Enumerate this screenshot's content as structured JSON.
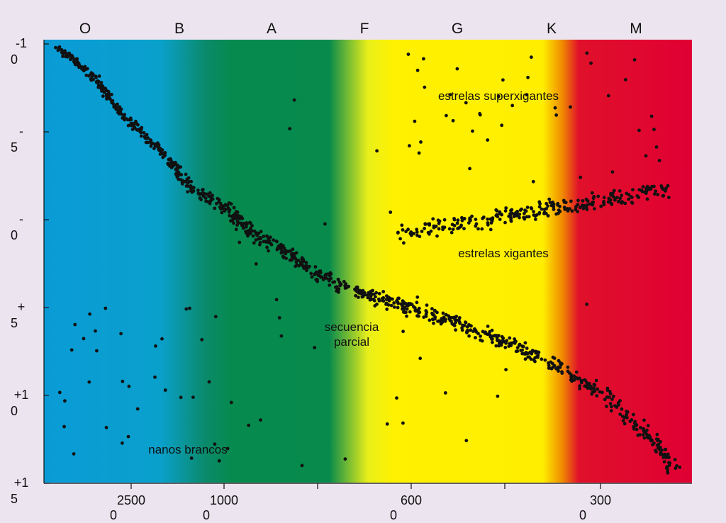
{
  "chart_data": {
    "type": "scatter",
    "title": "",
    "xlabel": "",
    "ylabel": "",
    "spectral_classes": [
      "O",
      "B",
      "A",
      "F",
      "G",
      "K",
      "M"
    ],
    "x_ticks": [
      {
        "value": 25000,
        "line1": "2500",
        "line2": "0"
      },
      {
        "value": 10000,
        "line1": "1000",
        "line2": "0"
      },
      {
        "value": 6000,
        "line1": "600",
        "line2": "0"
      },
      {
        "value": 3000,
        "line1": "300",
        "line2": "0"
      }
    ],
    "y_ticks": [
      {
        "value": -10,
        "line1": "-1",
        "line2": "0"
      },
      {
        "value": -5,
        "line1": "-",
        "line2": "5"
      },
      {
        "value": 0,
        "line1": "-",
        "line2": "0"
      },
      {
        "value": 5,
        "line1": "+",
        "line2": "5"
      },
      {
        "value": 10,
        "line1": "+1",
        "line2": "0"
      },
      {
        "value": 15,
        "line1": "+1",
        "line2": "5"
      }
    ],
    "ylim": [
      -10,
      15
    ],
    "y_inverted": true,
    "grid": false,
    "legend": "none",
    "regions": [
      {
        "label_lines": [
          "estrelas superxigantes"
        ],
        "class": "G",
        "magnitude": -7
      },
      {
        "label_lines": [
          "estrelas xigantes"
        ],
        "class": "G",
        "magnitude": 2
      },
      {
        "label_lines": [
          "secuencia",
          "parcial"
        ],
        "class": "F",
        "magnitude": 6.5
      },
      {
        "label_lines": [
          "nanos brancos"
        ],
        "class": "B",
        "magnitude": 13.3
      }
    ],
    "series": [
      {
        "values_description": "main sequence",
        "x": [
          0.02,
          0.05,
          0.08,
          0.1,
          0.12,
          0.15,
          0.18,
          0.2,
          0.22,
          0.25,
          0.28,
          0.3,
          0.32,
          0.35,
          0.38,
          0.4,
          0.43,
          0.46,
          0.5,
          0.53,
          0.56,
          0.6,
          0.63,
          0.66,
          0.7,
          0.73,
          0.76,
          0.8,
          0.84,
          0.88,
          0.92,
          0.95,
          0.98
        ],
        "y": [
          -9.8,
          -9.0,
          -8.0,
          -7.0,
          -6.0,
          -5.0,
          -4.0,
          -3.0,
          -2.0,
          -1.3,
          -0.6,
          0.0,
          0.7,
          1.3,
          2.0,
          2.6,
          3.2,
          3.8,
          4.3,
          4.6,
          5.0,
          5.4,
          5.8,
          6.3,
          6.8,
          7.3,
          7.8,
          8.5,
          9.5,
          10.5,
          11.8,
          13.0,
          14.5
        ]
      }
    ]
  }
}
